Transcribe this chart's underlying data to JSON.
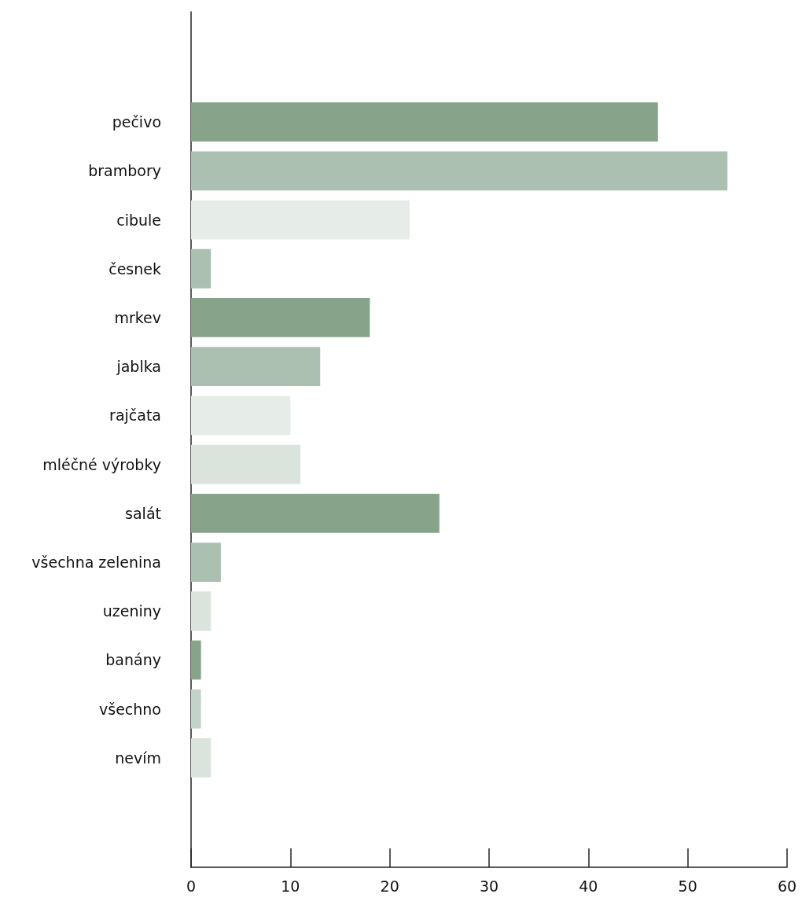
{
  "chart_data": {
    "type": "bar",
    "orientation": "horizontal",
    "categories": [
      "pečivo",
      "brambory",
      "cibule",
      "česnek",
      "mrkev",
      "jablka",
      "rajčata",
      "mléčné výrobky",
      "salát",
      "všechna zelenina",
      "uzeniny",
      "banány",
      "všechno",
      "nevím"
    ],
    "values": [
      47,
      54,
      22,
      2,
      18,
      13,
      10,
      11,
      25,
      3,
      2,
      1,
      1,
      2
    ],
    "colors": [
      "#87a48b",
      "#abc0b0",
      "#e6ede8",
      "#abc0b0",
      "#87a48b",
      "#abc0b0",
      "#e6ede8",
      "#dae4dc",
      "#87a48b",
      "#abc0b0",
      "#dae4dc",
      "#87a48b",
      "#c4d3c7",
      "#dae4dc"
    ],
    "xlim": [
      0,
      60
    ],
    "xticks": [
      0,
      10,
      20,
      30,
      40,
      50,
      60
    ],
    "grid": false
  }
}
